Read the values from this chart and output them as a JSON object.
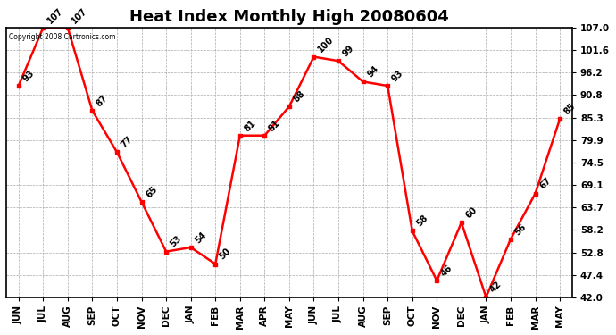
{
  "title": "Heat Index Monthly High 20080604",
  "copyright_text": "Copyright 2008 Cartronics.com",
  "months": [
    "JUN",
    "JUL",
    "AUG",
    "SEP",
    "OCT",
    "NOV",
    "DEC",
    "JAN",
    "FEB",
    "MAR",
    "APR",
    "MAY",
    "JUN",
    "JUL",
    "AUG",
    "SEP",
    "OCT",
    "NOV",
    "DEC",
    "JAN",
    "FEB",
    "MAR",
    "MAY"
  ],
  "values": [
    93,
    107,
    107,
    87,
    77,
    65,
    53,
    54,
    50,
    81,
    81,
    88,
    100,
    99,
    94,
    93,
    58,
    46,
    60,
    42,
    56,
    67,
    85
  ],
  "ylim": [
    42.0,
    107.0
  ],
  "yticks": [
    42.0,
    47.4,
    52.8,
    58.2,
    63.7,
    69.1,
    74.5,
    79.9,
    85.3,
    90.8,
    96.2,
    101.6,
    107.0
  ],
  "line_color": "#ff0000",
  "marker_color": "#ff0000",
  "bg_color": "#ffffff",
  "grid_color": "#aaaaaa",
  "title_fontsize": 13,
  "label_fontsize": 7.5,
  "annotation_fontsize": 7
}
